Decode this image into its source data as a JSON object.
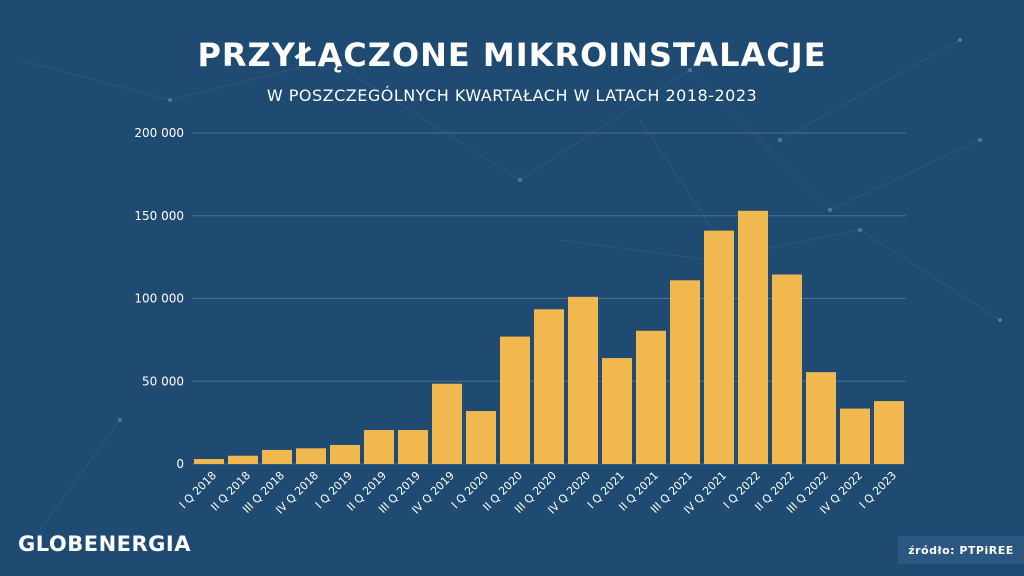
{
  "header": {
    "title": "PRZYŁĄCZONE MIKROINSTALACJE",
    "subtitle": "W POSZCZEGÓLNYCH KWARTAŁACH W LATACH 2018-2023"
  },
  "footer": {
    "brand": "GLOBENERGIA",
    "source": "źródło: PTPiREE"
  },
  "colors": {
    "background": "#1f4a72",
    "bar": "#f0b84f",
    "text": "#ffffff",
    "grid": "#5a7fa3"
  },
  "chart_data": {
    "type": "bar",
    "categories": [
      "I Q 2018",
      "II Q 2018",
      "III Q 2018",
      "IV Q 2018",
      "I Q 2019",
      "II Q 2019",
      "III Q 2019",
      "IV Q 2019",
      "I Q 2020",
      "II Q 2020",
      "III Q 2020",
      "IV Q 2020",
      "I Q 2021",
      "II Q 2021",
      "III Q 2021",
      "IV Q 2021",
      "I Q 2022",
      "II Q 2022",
      "III Q 2022",
      "IV Q 2022",
      "I Q 2023"
    ],
    "values": [
      3000,
      5000,
      8500,
      9500,
      11500,
      20500,
      20500,
      48500,
      32000,
      77000,
      93500,
      101000,
      64000,
      80500,
      111000,
      141000,
      153000,
      114500,
      55500,
      33500,
      38000
    ],
    "ylim": [
      0,
      200000
    ],
    "yticks": [
      "0",
      "50 000",
      "100 000",
      "150 000",
      "200 000"
    ],
    "ytick_values": [
      0,
      50000,
      100000,
      150000,
      200000
    ],
    "grid": true,
    "legend": "none",
    "xlabel": "",
    "ylabel": ""
  }
}
